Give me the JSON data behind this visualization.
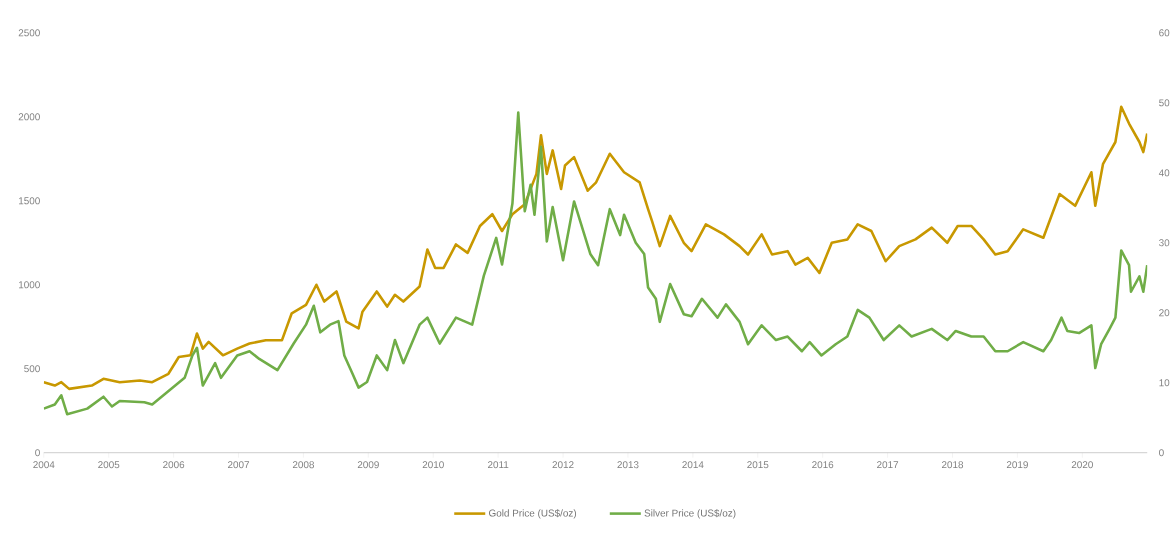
{
  "chart_data": {
    "type": "line",
    "xlim": [
      2004,
      2021
    ],
    "xticks": [
      2004,
      2005,
      2006,
      2007,
      2008,
      2009,
      2010,
      2011,
      2012,
      2013,
      2014,
      2015,
      2016,
      2017,
      2018,
      2019,
      2020
    ],
    "ylim": [
      0,
      2500
    ],
    "yticks": [
      0,
      500,
      1000,
      1500,
      2000,
      2500
    ],
    "y2lim": [
      0,
      60
    ],
    "y2ticks": [
      0,
      10,
      20,
      30,
      40,
      50,
      60
    ],
    "legend": "bottom",
    "marker": "none",
    "line_style": "solid",
    "series": [
      {
        "name": "Gold Price (US$/oz)",
        "color": "#c89800",
        "x": [
          2004.0,
          2004.17,
          2004.27,
          2004.39,
          2004.74,
          2004.92,
          2005.17,
          2005.48,
          2005.67,
          2005.92,
          2006.08,
          2006.26,
          2006.36,
          2006.45,
          2006.54,
          2006.76,
          2006.98,
          2007.17,
          2007.42,
          2007.67,
          2007.82,
          2008.04,
          2008.2,
          2008.32,
          2008.51,
          2008.66,
          2008.85,
          2008.91,
          2009.13,
          2009.29,
          2009.41,
          2009.54,
          2009.79,
          2009.91,
          2010.03,
          2010.16,
          2010.35,
          2010.53,
          2010.72,
          2010.91,
          2011.06,
          2011.22,
          2011.41,
          2011.59,
          2011.66,
          2011.75,
          2011.84,
          2011.97,
          2012.03,
          2012.17,
          2012.38,
          2012.51,
          2012.72,
          2012.94,
          2013.18,
          2013.31,
          2013.37,
          2013.49,
          2013.65,
          2013.86,
          2013.98,
          2014.2,
          2014.48,
          2014.72,
          2014.85,
          2015.06,
          2015.22,
          2015.46,
          2015.58,
          2015.77,
          2015.95,
          2016.14,
          2016.38,
          2016.54,
          2016.75,
          2016.97,
          2017.18,
          2017.43,
          2017.68,
          2017.92,
          2018.08,
          2018.29,
          2018.48,
          2018.66,
          2018.85,
          2019.09,
          2019.4,
          2019.65,
          2019.89,
          2020.14,
          2020.2,
          2020.32,
          2020.51,
          2020.6,
          2020.72,
          2020.88,
          2020.94,
          2021.0
        ],
        "values": [
          420,
          400,
          420,
          380,
          400,
          440,
          420,
          430,
          420,
          470,
          570,
          580,
          710,
          620,
          660,
          580,
          620,
          650,
          670,
          670,
          830,
          880,
          1000,
          900,
          960,
          780,
          740,
          840,
          960,
          870,
          940,
          900,
          990,
          1210,
          1100,
          1100,
          1240,
          1190,
          1350,
          1420,
          1320,
          1420,
          1480,
          1660,
          1890,
          1660,
          1800,
          1570,
          1710,
          1760,
          1560,
          1610,
          1780,
          1670,
          1610,
          1450,
          1380,
          1230,
          1410,
          1250,
          1200,
          1360,
          1300,
          1230,
          1180,
          1300,
          1180,
          1200,
          1120,
          1160,
          1070,
          1250,
          1270,
          1360,
          1320,
          1140,
          1230,
          1270,
          1340,
          1250,
          1350,
          1350,
          1270,
          1180,
          1200,
          1330,
          1280,
          1540,
          1470,
          1670,
          1470,
          1720,
          1850,
          2060,
          1960,
          1850,
          1790,
          1900
        ]
      },
      {
        "name": "Silver Price (US$/oz)",
        "color": "#70ad47",
        "axis": "y2",
        "x": [
          2004.0,
          2004.17,
          2004.27,
          2004.36,
          2004.67,
          2004.92,
          2005.05,
          2005.17,
          2005.55,
          2005.67,
          2005.92,
          2006.17,
          2006.29,
          2006.36,
          2006.45,
          2006.64,
          2006.73,
          2006.98,
          2007.17,
          2007.32,
          2007.6,
          2007.85,
          2008.04,
          2008.16,
          2008.26,
          2008.41,
          2008.54,
          2008.63,
          2008.76,
          2008.85,
          2008.98,
          2009.13,
          2009.29,
          2009.41,
          2009.54,
          2009.79,
          2009.91,
          2010.1,
          2010.35,
          2010.6,
          2010.78,
          2010.97,
          2011.06,
          2011.22,
          2011.31,
          2011.41,
          2011.5,
          2011.56,
          2011.66,
          2011.75,
          2011.84,
          2012.0,
          2012.17,
          2012.42,
          2012.54,
          2012.72,
          2012.88,
          2012.94,
          2013.12,
          2013.25,
          2013.31,
          2013.43,
          2013.49,
          2013.65,
          2013.86,
          2013.98,
          2014.14,
          2014.38,
          2014.51,
          2014.72,
          2014.85,
          2015.06,
          2015.28,
          2015.46,
          2015.68,
          2015.8,
          2015.98,
          2016.2,
          2016.38,
          2016.54,
          2016.72,
          2016.94,
          2017.18,
          2017.37,
          2017.68,
          2017.92,
          2018.05,
          2018.29,
          2018.48,
          2018.66,
          2018.85,
          2019.09,
          2019.4,
          2019.52,
          2019.68,
          2019.77,
          2019.95,
          2020.14,
          2020.2,
          2020.29,
          2020.42,
          2020.51,
          2020.6,
          2020.72,
          2020.75,
          2020.88,
          2020.94,
          2021.0
        ],
        "values": [
          6.3,
          6.9,
          8.2,
          5.5,
          6.3,
          8.0,
          6.6,
          7.4,
          7.2,
          6.9,
          8.8,
          10.7,
          13.9,
          15.0,
          9.6,
          12.8,
          10.7,
          13.9,
          14.5,
          13.4,
          11.8,
          15.6,
          18.3,
          21.0,
          17.2,
          18.3,
          18.8,
          13.9,
          11.2,
          9.3,
          10.1,
          13.9,
          11.8,
          16.1,
          12.8,
          18.3,
          19.3,
          15.6,
          19.3,
          18.3,
          25.3,
          30.7,
          26.9,
          35.6,
          48.6,
          34.5,
          38.3,
          34.0,
          43.7,
          30.2,
          35.1,
          27.5,
          35.9,
          28.4,
          26.8,
          34.8,
          31.1,
          34.0,
          30.0,
          28.4,
          23.6,
          22.0,
          18.7,
          24.1,
          19.8,
          19.5,
          22.0,
          19.3,
          21.2,
          18.7,
          15.5,
          18.2,
          16.1,
          16.6,
          14.5,
          15.8,
          13.9,
          15.5,
          16.6,
          20.4,
          19.3,
          16.1,
          18.2,
          16.6,
          17.7,
          16.1,
          17.4,
          16.6,
          16.6,
          14.5,
          14.5,
          15.8,
          14.5,
          16.1,
          19.3,
          17.4,
          17.1,
          18.2,
          12.1,
          15.5,
          17.7,
          19.3,
          28.9,
          26.8,
          23.0,
          25.2,
          23.0,
          26.8
        ]
      }
    ]
  }
}
